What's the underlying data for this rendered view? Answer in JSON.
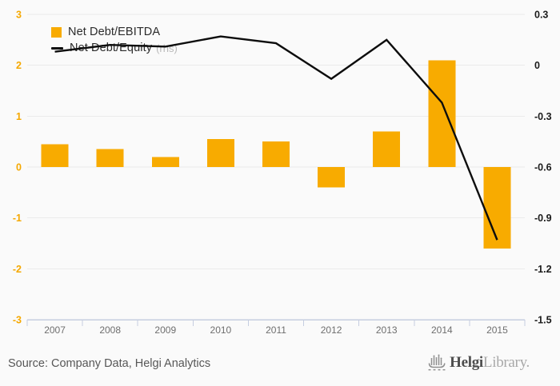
{
  "colors": {
    "bar": "#F8AB00",
    "line": "#0d0d0d",
    "grid": "#ebebeb",
    "axis_line": "#c5cde0",
    "left_label": "#F5A800",
    "right_label": "#1a1a1a",
    "year_label": "#6e6e6e",
    "background": "#fafafa"
  },
  "legend": {
    "items": [
      {
        "label": "Net Debt/EBITDA",
        "type": "square"
      },
      {
        "label": "Net Debt/Equity",
        "suffix": "(rhs)",
        "type": "line"
      }
    ]
  },
  "chart_data": {
    "type": "bar+line",
    "title": "",
    "xlabel": "",
    "ylabel": "",
    "grid": true,
    "legend_position": "top-left",
    "categories": [
      "2007",
      "2008",
      "2009",
      "2010",
      "2011",
      "2012",
      "2013",
      "2014",
      "2015"
    ],
    "series": [
      {
        "name": "Net Debt/EBITDA",
        "type": "bar",
        "axis": "left",
        "values": [
          0.45,
          0.35,
          0.2,
          0.55,
          0.5,
          -0.4,
          0.7,
          2.1,
          -1.6
        ]
      },
      {
        "name": "Net Debt/Equity (rhs)",
        "type": "line",
        "axis": "right",
        "values": [
          0.08,
          0.12,
          0.11,
          0.17,
          0.13,
          -0.08,
          0.15,
          -0.22,
          -1.03
        ]
      }
    ],
    "left_axis": {
      "tick_labels": [
        "3",
        "2",
        "1",
        "0",
        "-1",
        "-2",
        "-3"
      ],
      "ticks": [
        3,
        2,
        1,
        0,
        -1,
        -2,
        -3
      ],
      "range": [
        -3,
        3
      ]
    },
    "right_axis": {
      "tick_labels": [
        "0.3",
        "0",
        "-0.3",
        "-0.6",
        "-0.9",
        "-1.2",
        "-1.5"
      ],
      "ticks": [
        0.3,
        0,
        -0.3,
        -0.6,
        -0.9,
        -1.2,
        -1.5
      ],
      "range": [
        -1.5,
        0.3
      ]
    }
  },
  "footer": {
    "source": "Source: Company Data, Helgi Analytics",
    "brand": {
      "name_bold": "Helgi",
      "name_light": "Library."
    }
  }
}
